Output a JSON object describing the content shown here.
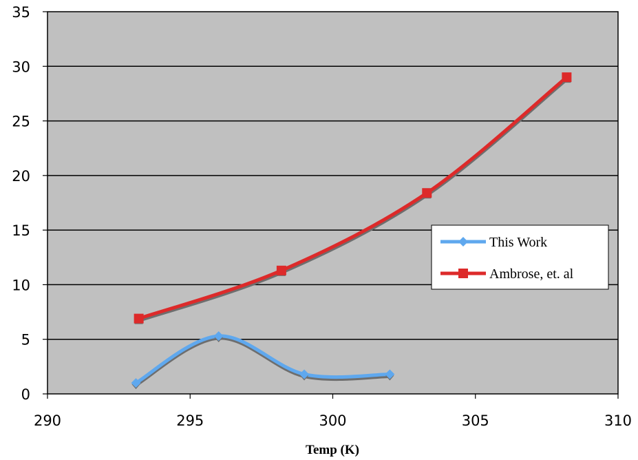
{
  "chart_data": {
    "type": "line",
    "title": "",
    "xlabel": "Temp (K)",
    "ylabel": "",
    "xlim": [
      290,
      310
    ],
    "ylim": [
      0,
      35
    ],
    "xticks": [
      290,
      295,
      300,
      305,
      310
    ],
    "yticks": [
      0,
      5,
      10,
      15,
      20,
      25,
      30,
      35
    ],
    "grid": "horizontal",
    "legend_position": "right",
    "series": [
      {
        "name": "This Work",
        "color": "#5fa8ee",
        "marker": "diamond",
        "smooth": true,
        "points": [
          [
            293.1,
            1.0
          ],
          [
            296.0,
            5.3
          ],
          [
            299.0,
            1.8
          ],
          [
            302.0,
            1.8
          ]
        ]
      },
      {
        "name": "Ambrose, et. al",
        "color": "#dd2a2a",
        "marker": "square",
        "smooth": true,
        "points": [
          [
            293.2,
            6.9
          ],
          [
            298.2,
            11.3
          ],
          [
            303.3,
            18.4
          ],
          [
            308.2,
            29.0
          ]
        ]
      }
    ]
  },
  "colors": {
    "plot_background": "#c0c0c0",
    "gridline": "#000000",
    "shadow": "#6e6e6e"
  }
}
